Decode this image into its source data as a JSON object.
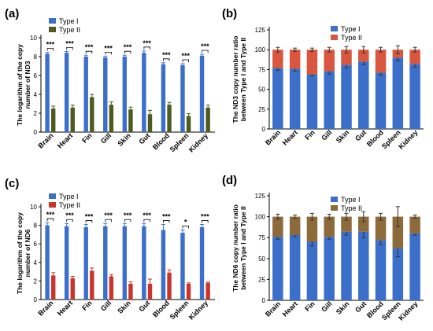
{
  "chart_data": [
    {
      "panel_label": "(a)",
      "type": "bar",
      "layout": "grouped",
      "ylabel_lines": [
        "The logarithm of the copy",
        "number of ND3"
      ],
      "ylim": [
        0,
        10
      ],
      "yticks": [
        0,
        2,
        4,
        6,
        8,
        10
      ],
      "categories": [
        "Brain",
        "Heart",
        "Fin",
        "Gill",
        "Skin",
        "Gut",
        "Blood",
        "Spleen",
        "Kidney"
      ],
      "series": [
        {
          "name": "Type I",
          "color": "#3b6fc9",
          "values": [
            8.3,
            8.4,
            8.0,
            7.9,
            8.0,
            8.4,
            7.2,
            7.1,
            8.1
          ],
          "errors": [
            0.15,
            0.15,
            0.15,
            0.15,
            0.15,
            0.2,
            0.15,
            0.15,
            0.15
          ]
        },
        {
          "name": "Type II",
          "color": "#4f5a1e",
          "values": [
            2.5,
            2.6,
            3.7,
            2.9,
            2.4,
            1.9,
            2.9,
            1.7,
            2.6
          ],
          "errors": [
            0.25,
            0.25,
            0.3,
            0.3,
            0.25,
            0.4,
            0.25,
            0.25,
            0.25
          ]
        }
      ],
      "significance": [
        "***",
        "***",
        "***",
        "***",
        "***",
        "***",
        "***",
        "***",
        "***"
      ],
      "legend_position": "top-left"
    },
    {
      "panel_label": "(b)",
      "type": "bar",
      "layout": "stacked",
      "ylabel_lines": [
        "The ND3 copy number ratio",
        "between Type I and Type II"
      ],
      "ylim": [
        0,
        125
      ],
      "yticks": [
        0,
        25,
        50,
        75,
        100,
        125
      ],
      "categories": [
        "Brain",
        "Heart",
        "Fin",
        "Gill",
        "Skin",
        "Gut",
        "Blood",
        "Spleen",
        "Kidney"
      ],
      "series": [
        {
          "name": "Type I",
          "color": "#3b6fc9",
          "values": [
            77,
            76,
            69,
            73,
            81,
            85,
            71,
            90,
            82
          ],
          "errors": [
            3,
            3,
            2,
            4,
            4,
            4,
            3,
            4,
            4
          ]
        },
        {
          "name": "Type II",
          "color": "#d9573f",
          "values": [
            23,
            24,
            31,
            27,
            19,
            15,
            29,
            10,
            18
          ],
          "errors": [
            3,
            2,
            2,
            3,
            4,
            4,
            3,
            5,
            3
          ]
        }
      ],
      "legend_position": "top-right"
    },
    {
      "panel_label": "(c)",
      "type": "bar",
      "layout": "grouped",
      "ylabel_lines": [
        "The logarithm of the copy",
        "number of ND6"
      ],
      "ylim": [
        0,
        10
      ],
      "yticks": [
        0,
        2,
        4,
        6,
        8,
        10
      ],
      "categories": [
        "Brain",
        "Heart",
        "Fin",
        "Gill",
        "Skin",
        "Gut",
        "Blood",
        "Spleen",
        "Kidney"
      ],
      "series": [
        {
          "name": "Type I",
          "color": "#3b6fc9",
          "values": [
            8.0,
            7.9,
            7.8,
            7.9,
            7.9,
            7.9,
            7.5,
            7.2,
            7.8
          ],
          "errors": [
            0.3,
            0.3,
            0.3,
            0.3,
            0.3,
            0.3,
            0.6,
            0.3,
            0.3
          ]
        },
        {
          "name": "Type II",
          "color": "#c8352b",
          "values": [
            2.6,
            2.3,
            3.1,
            2.5,
            1.7,
            1.7,
            2.9,
            1.7,
            1.8
          ],
          "errors": [
            0.3,
            0.2,
            0.3,
            0.2,
            0.2,
            0.5,
            0.3,
            0.1,
            0.1
          ]
        }
      ],
      "significance": [
        "***",
        "***",
        "***",
        "***",
        "***",
        "***",
        "***",
        "*",
        "***"
      ],
      "legend_position": "top-left"
    },
    {
      "panel_label": "(d)",
      "type": "bar",
      "layout": "stacked",
      "ylabel_lines": [
        "The ND6 copy number ratio",
        "between Type I and Type II"
      ],
      "ylim": [
        0,
        125
      ],
      "yticks": [
        0,
        25,
        50,
        75,
        100,
        125
      ],
      "categories": [
        "Brain",
        "Heart",
        "Fin",
        "Gill",
        "Skin",
        "Gut",
        "Blood",
        "Spleen",
        "Kidney"
      ],
      "series": [
        {
          "name": "Type I",
          "color": "#3b6fc9",
          "values": [
            76,
            78,
            70,
            76,
            82,
            82,
            72,
            62,
            80
          ],
          "errors": [
            3,
            2,
            5,
            3,
            4,
            7,
            5,
            10,
            2
          ]
        },
        {
          "name": "Type II",
          "color": "#8c6a3c",
          "values": [
            24,
            22,
            30,
            24,
            18,
            18,
            28,
            38,
            20
          ],
          "errors": [
            3,
            2,
            4,
            3,
            4,
            6,
            4,
            12,
            2
          ]
        }
      ],
      "legend_position": "top-right"
    }
  ]
}
